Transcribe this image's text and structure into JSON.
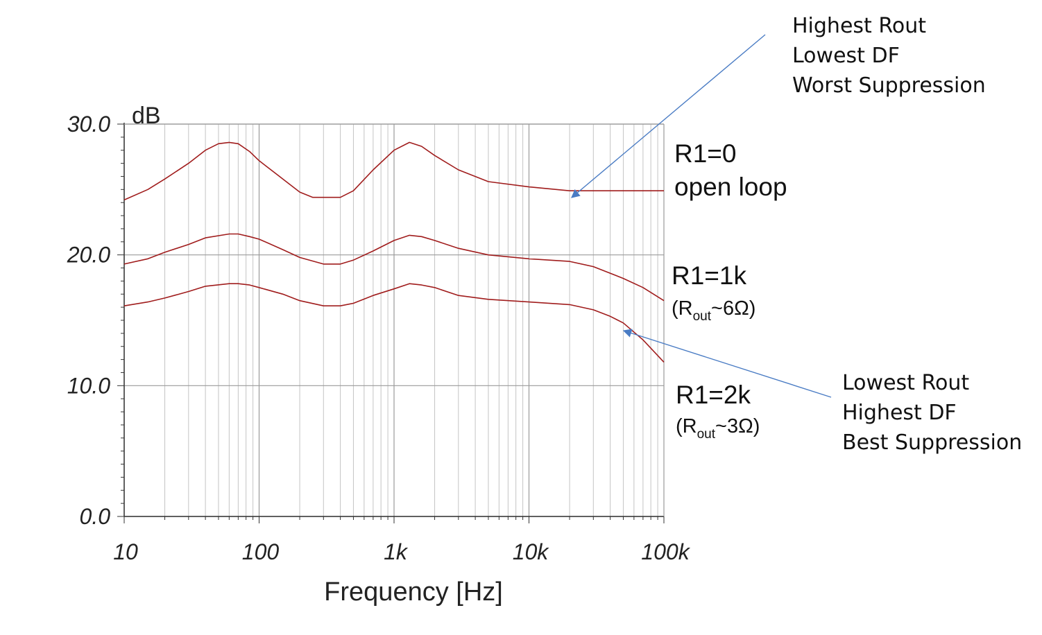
{
  "chart_data": {
    "type": "line",
    "x_scale": "log",
    "xlabel": "Frequency [Hz]",
    "ylabel": "dB",
    "xlim": [
      10,
      100000
    ],
    "ylim": [
      0,
      30
    ],
    "grid": true,
    "x_ticks": [
      {
        "value": 10,
        "label": "10"
      },
      {
        "value": 100,
        "label": "100"
      },
      {
        "value": 1000,
        "label": "1k"
      },
      {
        "value": 10000,
        "label": "10k"
      },
      {
        "value": 100000,
        "label": "100k"
      }
    ],
    "y_ticks": [
      {
        "value": 0,
        "label": "0.0"
      },
      {
        "value": 10,
        "label": "10.0"
      },
      {
        "value": 20,
        "label": "20.0"
      },
      {
        "value": 30,
        "label": "30.0"
      }
    ],
    "series_color": "#a01c1c",
    "series": [
      {
        "label": "R1=0",
        "sublabel": "open loop",
        "points": [
          [
            10,
            24.2
          ],
          [
            15,
            25.0
          ],
          [
            20,
            25.8
          ],
          [
            30,
            27.0
          ],
          [
            40,
            28.0
          ],
          [
            50,
            28.5
          ],
          [
            60,
            28.6
          ],
          [
            70,
            28.5
          ],
          [
            85,
            27.9
          ],
          [
            100,
            27.2
          ],
          [
            150,
            25.8
          ],
          [
            200,
            24.8
          ],
          [
            250,
            24.4
          ],
          [
            300,
            24.4
          ],
          [
            400,
            24.4
          ],
          [
            500,
            24.9
          ],
          [
            700,
            26.5
          ],
          [
            1000,
            28.0
          ],
          [
            1300,
            28.6
          ],
          [
            1600,
            28.3
          ],
          [
            2000,
            27.6
          ],
          [
            3000,
            26.5
          ],
          [
            5000,
            25.6
          ],
          [
            10000,
            25.2
          ],
          [
            20000,
            24.9
          ],
          [
            30000,
            24.9
          ],
          [
            50000,
            24.9
          ],
          [
            100000,
            24.9
          ]
        ]
      },
      {
        "label": "R1=1k",
        "sublabel_main": "(R",
        "sublabel_sub": "out",
        "sublabel_tail": "~6Ω)",
        "points": [
          [
            10,
            19.3
          ],
          [
            15,
            19.7
          ],
          [
            20,
            20.2
          ],
          [
            30,
            20.8
          ],
          [
            40,
            21.3
          ],
          [
            60,
            21.6
          ],
          [
            70,
            21.6
          ],
          [
            85,
            21.4
          ],
          [
            100,
            21.2
          ],
          [
            150,
            20.4
          ],
          [
            200,
            19.8
          ],
          [
            300,
            19.3
          ],
          [
            400,
            19.3
          ],
          [
            500,
            19.6
          ],
          [
            700,
            20.3
          ],
          [
            1000,
            21.1
          ],
          [
            1300,
            21.5
          ],
          [
            1600,
            21.4
          ],
          [
            2000,
            21.1
          ],
          [
            3000,
            20.5
          ],
          [
            5000,
            20.0
          ],
          [
            10000,
            19.7
          ],
          [
            20000,
            19.5
          ],
          [
            30000,
            19.1
          ],
          [
            50000,
            18.2
          ],
          [
            70000,
            17.5
          ],
          [
            100000,
            16.5
          ]
        ]
      },
      {
        "label": "R1=2k",
        "sublabel_main": "(R",
        "sublabel_sub": "out",
        "sublabel_tail": "~3Ω)",
        "points": [
          [
            10,
            16.1
          ],
          [
            15,
            16.4
          ],
          [
            20,
            16.7
          ],
          [
            30,
            17.2
          ],
          [
            40,
            17.6
          ],
          [
            60,
            17.8
          ],
          [
            70,
            17.8
          ],
          [
            85,
            17.7
          ],
          [
            100,
            17.5
          ],
          [
            150,
            17.0
          ],
          [
            200,
            16.5
          ],
          [
            300,
            16.1
          ],
          [
            400,
            16.1
          ],
          [
            500,
            16.3
          ],
          [
            700,
            16.9
          ],
          [
            1000,
            17.4
          ],
          [
            1300,
            17.8
          ],
          [
            1600,
            17.7
          ],
          [
            2000,
            17.5
          ],
          [
            3000,
            16.9
          ],
          [
            5000,
            16.6
          ],
          [
            10000,
            16.4
          ],
          [
            20000,
            16.2
          ],
          [
            30000,
            15.8
          ],
          [
            40000,
            15.3
          ],
          [
            50000,
            14.8
          ],
          [
            70000,
            13.5
          ],
          [
            100000,
            11.8
          ]
        ]
      }
    ],
    "annotations": [
      {
        "lines": [
          "Highest Rout",
          "Lowest DF",
          "Worst Suppression"
        ]
      },
      {
        "lines": [
          "Lowest Rout",
          "Highest DF",
          "Best Suppression"
        ]
      }
    ],
    "arrow_color": "#4a7cc4"
  }
}
